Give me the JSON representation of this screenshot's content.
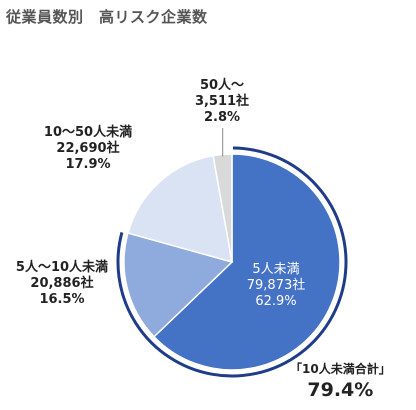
{
  "title": "従業員数別　高リスク企業数",
  "chart_data": {
    "type": "pie",
    "title": "従業員数別　高リスク企業数",
    "slices": [
      {
        "name": "5人未満",
        "count": "79,873社",
        "percent": "62.9%",
        "value": 62.9,
        "color": "#4472c4"
      },
      {
        "name": "5人～10人未満",
        "count": "20,886社",
        "percent": "16.5%",
        "value": 16.5,
        "color": "#8faadc"
      },
      {
        "name": "10～50人未満",
        "count": "22,690社",
        "percent": "17.9%",
        "value": 17.9,
        "color": "#dae3f3"
      },
      {
        "name": "50人～",
        "count": "3,511社",
        "percent": "2.8%",
        "value": 2.8,
        "color": "#d9d9d9"
      }
    ],
    "highlight": {
      "label": "「10人未満合計」",
      "value": "79.4%",
      "slices": [
        0,
        1
      ]
    }
  }
}
